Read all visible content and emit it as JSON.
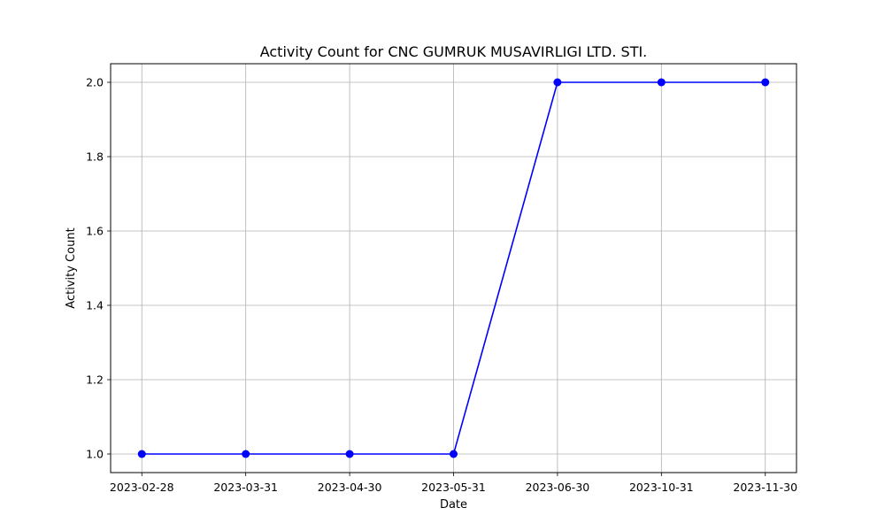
{
  "chart_data": {
    "type": "line",
    "title": "Activity Count for CNC GUMRUK MUSAVIRLIGI LTD. STI.",
    "xlabel": "Date",
    "ylabel": "Activity Count",
    "categories": [
      "2023-02-28",
      "2023-03-31",
      "2023-04-30",
      "2023-05-31",
      "2023-06-30",
      "2023-10-31",
      "2023-11-30"
    ],
    "series": [
      {
        "values": [
          1,
          1,
          1,
          1,
          2,
          2,
          2
        ],
        "color": "#0000ff",
        "marker": "circle"
      }
    ],
    "ylim": [
      0.95,
      2.05
    ],
    "yticks": [
      1.0,
      1.2,
      1.4,
      1.6,
      1.8,
      2.0
    ],
    "ytick_labels": [
      "1.0",
      "1.2",
      "1.4",
      "1.6",
      "1.8",
      "2.0"
    ],
    "grid": true,
    "legend": "none"
  }
}
